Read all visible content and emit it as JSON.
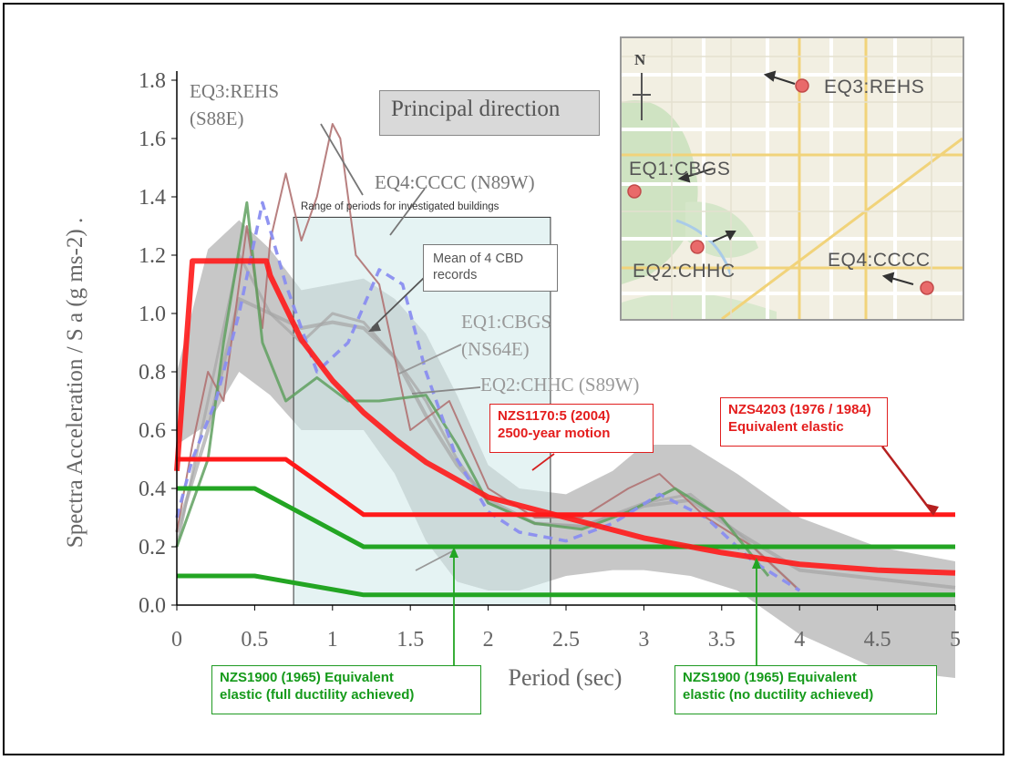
{
  "chart_data": {
    "type": "line",
    "xlabel": "Period (sec)",
    "ylabel": "Spectra Acceleration / S a (g ms-2) .",
    "xlim": [
      0,
      5
    ],
    "ylim": [
      0,
      1.8
    ],
    "xticks": [
      "0",
      "0.5",
      "1",
      "1.5",
      "2",
      "2.5",
      "3",
      "3.5",
      "4",
      "4.5",
      "5"
    ],
    "yticks": [
      "0.0",
      "0.2",
      "0.4",
      "0.6",
      "0.8",
      "1.0",
      "1.2",
      "1.4",
      "1.6",
      "1.8"
    ],
    "grid": false,
    "highlight_range": {
      "from": 0.75,
      "to": 2.4,
      "label": "Range of periods for investigated buildings"
    },
    "principal_label": "Principal direction",
    "series": [
      {
        "name": "NZS1170:5 (2004) 2500-year motion",
        "color": "#ff1a1a",
        "x": [
          0,
          0.1,
          0.575,
          0.6,
          0.8,
          1.0,
          1.2,
          1.4,
          1.6,
          1.8,
          2.0,
          2.5,
          3.0,
          3.5,
          4.0,
          4.5,
          5.0
        ],
        "y": [
          0.46,
          1.18,
          1.18,
          1.13,
          0.91,
          0.77,
          0.66,
          0.57,
          0.49,
          0.43,
          0.37,
          0.3,
          0.23,
          0.18,
          0.14,
          0.12,
          0.11
        ]
      },
      {
        "name": "NZS4203 (1976 / 1984) Equivalent elastic",
        "color": "#ff1a1a",
        "x": [
          0,
          0.7,
          1.2,
          5.0
        ],
        "y": [
          0.5,
          0.5,
          0.31,
          0.31
        ]
      },
      {
        "name": "NZS1900 (1965) Equivalent elastic (no ductility achieved)",
        "color": "#23a523",
        "x": [
          0,
          0.5,
          1.2,
          5.0
        ],
        "y": [
          0.4,
          0.4,
          0.2,
          0.2
        ]
      },
      {
        "name": "NZS1900 (1965) Equivalent elastic (full ductility achieved)",
        "color": "#23a523",
        "x": [
          0,
          0.5,
          1.2,
          5.0
        ],
        "y": [
          0.1,
          0.1,
          0.035,
          0.035
        ]
      },
      {
        "name": "EQ3:REHS (S88E)",
        "color": "#b07272",
        "x": [
          0,
          0.1,
          0.2,
          0.3,
          0.45,
          0.55,
          0.6,
          0.7,
          0.8,
          0.9,
          1.0,
          1.05,
          1.15,
          1.3,
          1.5,
          1.75,
          2.0,
          2.3,
          2.6,
          2.9,
          3.1,
          3.4,
          3.7,
          4.0
        ],
        "y": [
          0.25,
          0.55,
          0.8,
          0.7,
          1.3,
          0.95,
          1.25,
          1.48,
          1.25,
          1.4,
          1.65,
          1.6,
          1.2,
          1.1,
          0.6,
          0.7,
          0.4,
          0.3,
          0.3,
          0.4,
          0.45,
          0.3,
          0.2,
          0.05
        ]
      },
      {
        "name": "EQ4:CCCC (N89W)",
        "color": "#8a8ef0",
        "x": [
          0,
          0.1,
          0.25,
          0.4,
          0.55,
          0.7,
          0.9,
          1.1,
          1.3,
          1.45,
          1.6,
          1.8,
          2.0,
          2.2,
          2.5,
          2.8,
          3.1,
          3.4,
          3.7,
          4.0
        ],
        "y": [
          0.3,
          0.5,
          0.7,
          1.0,
          1.38,
          1.1,
          0.8,
          0.9,
          1.15,
          1.1,
          0.8,
          0.5,
          0.32,
          0.25,
          0.22,
          0.28,
          0.38,
          0.3,
          0.15,
          0.05
        ]
      },
      {
        "name": "EQ1:CBGS (NS64E)",
        "color": "#aaaaaa",
        "x": [
          0,
          0.2,
          0.4,
          0.6,
          0.8,
          1.0,
          1.2,
          1.4,
          1.6,
          1.8,
          2.0,
          2.3,
          2.6,
          3.0,
          3.3,
          3.6,
          4.0
        ],
        "y": [
          0.2,
          0.7,
          1.2,
          1.0,
          0.9,
          1.0,
          0.97,
          0.85,
          0.7,
          0.5,
          0.35,
          0.28,
          0.27,
          0.35,
          0.38,
          0.25,
          0.05
        ]
      },
      {
        "name": "EQ2:CHHC (S89W)",
        "color": "#5fa05f",
        "x": [
          0,
          0.2,
          0.3,
          0.45,
          0.55,
          0.7,
          0.9,
          1.1,
          1.3,
          1.6,
          1.8,
          2.0,
          2.3,
          2.6,
          2.9,
          3.2,
          3.5,
          3.8
        ],
        "y": [
          0.2,
          0.5,
          0.9,
          1.38,
          0.9,
          0.7,
          0.78,
          0.7,
          0.7,
          0.72,
          0.55,
          0.35,
          0.28,
          0.26,
          0.32,
          0.4,
          0.3,
          0.1
        ]
      },
      {
        "name": "Mean of 4 CBD records",
        "color": "#a5a5a5",
        "x": [
          0,
          0.2,
          0.4,
          0.6,
          0.8,
          1.0,
          1.2,
          1.4,
          1.6,
          1.8,
          2.0,
          2.3,
          2.6,
          3.0,
          3.3,
          3.6,
          4.0,
          5.0
        ],
        "y": [
          0.25,
          0.6,
          1.05,
          1.0,
          0.95,
          0.97,
          0.95,
          0.85,
          0.65,
          0.48,
          0.36,
          0.28,
          0.27,
          0.34,
          0.36,
          0.25,
          0.12,
          0.06
        ]
      }
    ],
    "band": {
      "x": [
        0,
        0.2,
        0.4,
        0.6,
        0.8,
        1.0,
        1.2,
        1.4,
        1.6,
        1.8,
        2.0,
        2.2,
        2.5,
        2.8,
        3.0,
        3.3,
        3.6,
        4.0,
        4.5,
        5.0
      ],
      "upper": [
        0.8,
        1.22,
        1.32,
        1.22,
        1.08,
        1.1,
        1.12,
        1.05,
        0.93,
        0.72,
        0.48,
        0.4,
        0.38,
        0.46,
        0.55,
        0.55,
        0.45,
        0.3,
        0.2,
        0.15
      ],
      "lower": [
        0.55,
        0.62,
        0.8,
        0.72,
        0.6,
        0.6,
        0.6,
        0.45,
        0.22,
        0.08,
        0.05,
        0.05,
        0.1,
        0.12,
        0.12,
        0.1,
        0.05,
        -0.1,
        -0.22,
        -0.25
      ]
    },
    "annotations": {
      "eq3_label": [
        "EQ3:REHS",
        "(S88E)"
      ],
      "eq4_label": "EQ4:CCCC (N89W)",
      "eq1_label": [
        "EQ1:CBGS",
        "(NS64E)"
      ],
      "eq2_label": "EQ2:CHHC (S89W)",
      "mean_box": "Mean of 4 CBD records",
      "nzs1170_box": [
        "NZS1170:5 (2004)",
        "2500-year motion"
      ],
      "nzs4203_box": [
        "NZS4203 (1976 / 1984)",
        "Equivalent elastic"
      ],
      "nzs1900_full_box": [
        "NZS1900 (1965) Equivalent",
        "elastic (full ductility achieved)"
      ],
      "nzs1900_none_box": [
        "NZS1900 (1965) Equivalent",
        "elastic (no ductility achieved)"
      ]
    }
  },
  "map": {
    "north": "N",
    "stations": [
      "EQ3:REHS",
      "EQ1:CBGS",
      "EQ2:CHHC",
      "EQ4:CCCC"
    ],
    "marker_color": "#e96a6a"
  }
}
